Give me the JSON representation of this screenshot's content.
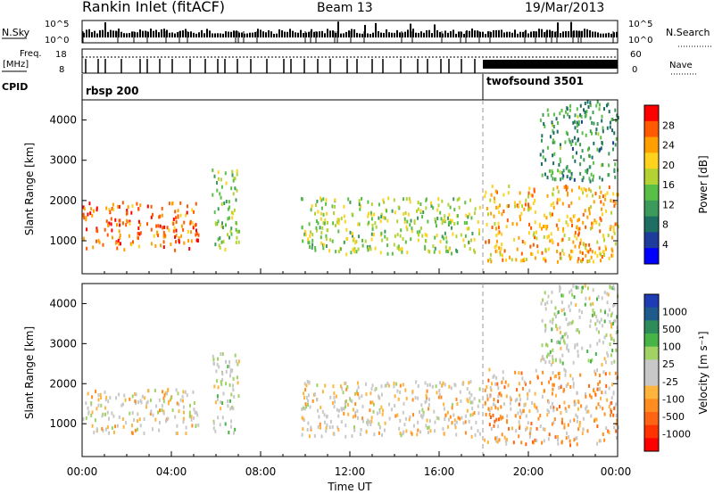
{
  "header": {
    "station": "Rankin Inlet (fitACF)",
    "beam": "Beam 13",
    "date": "19/Mar/2013"
  },
  "ancillary": {
    "nsky_label": "N.Sky",
    "nsearch_label": "N.Search",
    "count_ticks": [
      "10^5",
      "10^0"
    ],
    "freq_label": [
      "Freq.",
      "[MHz]"
    ],
    "freq_ticks": [
      "18",
      "8"
    ],
    "nave_label": "Nave",
    "nave_ticks": [
      "60",
      "0"
    ],
    "cpid_label": "CPID",
    "cpid_segments": [
      {
        "name": "rbsp 200",
        "start_hour": 0
      },
      {
        "name": "twofsound 3501",
        "start_hour": 18
      }
    ]
  },
  "axes": {
    "x_label": "Time UT",
    "x_ticks": [
      "00:00",
      "04:00",
      "08:00",
      "12:00",
      "16:00",
      "20:00",
      "00:00"
    ],
    "y_label": "Slant Range [km]",
    "y_ticks": [
      "1000",
      "2000",
      "3000",
      "4000"
    ]
  },
  "colorbars": {
    "power": {
      "label": "Power [dB]",
      "ticks": [
        "28",
        "24",
        "20",
        "16",
        "12",
        "8",
        "4"
      ],
      "colors": [
        "#ff0000",
        "#ff5a00",
        "#ff9f00",
        "#ffd21e",
        "#b4d232",
        "#5abf46",
        "#3c9a5a",
        "#1e6e64",
        "#1e3c9c",
        "#0000ff"
      ]
    },
    "velocity": {
      "label": "Velocity [m s⁻¹]",
      "ticks": [
        "1000",
        "500",
        "100",
        "25",
        "-25",
        "-100",
        "-500",
        "-1000"
      ],
      "colors": [
        "#1e3cb4",
        "#1e5a8c",
        "#2d8c5a",
        "#46b446",
        "#a0d264",
        "#c8c8c8",
        "#c8c8c8",
        "#ffb43c",
        "#ff8c1e",
        "#ff6414",
        "#ff3200",
        "#ff0000"
      ]
    }
  },
  "chart_data": {
    "type": "heatmap",
    "title": "Rankin Inlet (fitACF)",
    "subtitle": "Beam 13",
    "date": "19/Mar/2013",
    "xlabel": "Time UT",
    "ylabel": "Slant Range [km]",
    "xlim_hours": [
      0,
      24
    ],
    "ylim_km": [
      180,
      4500
    ],
    "panels": [
      {
        "quantity": "Power",
        "unit": "dB",
        "colorbar_range": [
          0,
          30
        ],
        "scatter_regions": [
          {
            "t_start": 0.0,
            "t_end": 5.2,
            "range_km": [
              800,
              2000
            ],
            "typical": 26
          },
          {
            "t_start": 5.8,
            "t_end": 7.0,
            "range_km": [
              800,
              2800
            ],
            "typical": 14
          },
          {
            "t_start": 9.8,
            "t_end": 17.8,
            "range_km": [
              700,
              2100
            ],
            "typical": 16
          },
          {
            "t_start": 18.0,
            "t_end": 24.0,
            "range_km": [
              500,
              2400
            ],
            "typical": 22
          },
          {
            "t_start": 20.5,
            "t_end": 24.0,
            "range_km": [
              2500,
              4500
            ],
            "typical": 10
          }
        ]
      },
      {
        "quantity": "Velocity",
        "unit": "m s^-1",
        "colorbar_range": [
          -1000,
          1000
        ],
        "scatter_regions": [
          {
            "t_start": 0.0,
            "t_end": 5.2,
            "range_km": [
              800,
              1900
            ],
            "typical": -100
          },
          {
            "t_start": 5.8,
            "t_end": 7.0,
            "range_km": [
              800,
              2800
            ],
            "typical": 100
          },
          {
            "t_start": 9.8,
            "t_end": 17.8,
            "range_km": [
              700,
              2100
            ],
            "typical": -100
          },
          {
            "t_start": 18.0,
            "t_end": 24.0,
            "range_km": [
              500,
              2400
            ],
            "typical": -300
          },
          {
            "t_start": 20.5,
            "t_end": 24.0,
            "range_km": [
              2500,
              4500
            ],
            "typical": 100
          }
        ]
      }
    ]
  }
}
